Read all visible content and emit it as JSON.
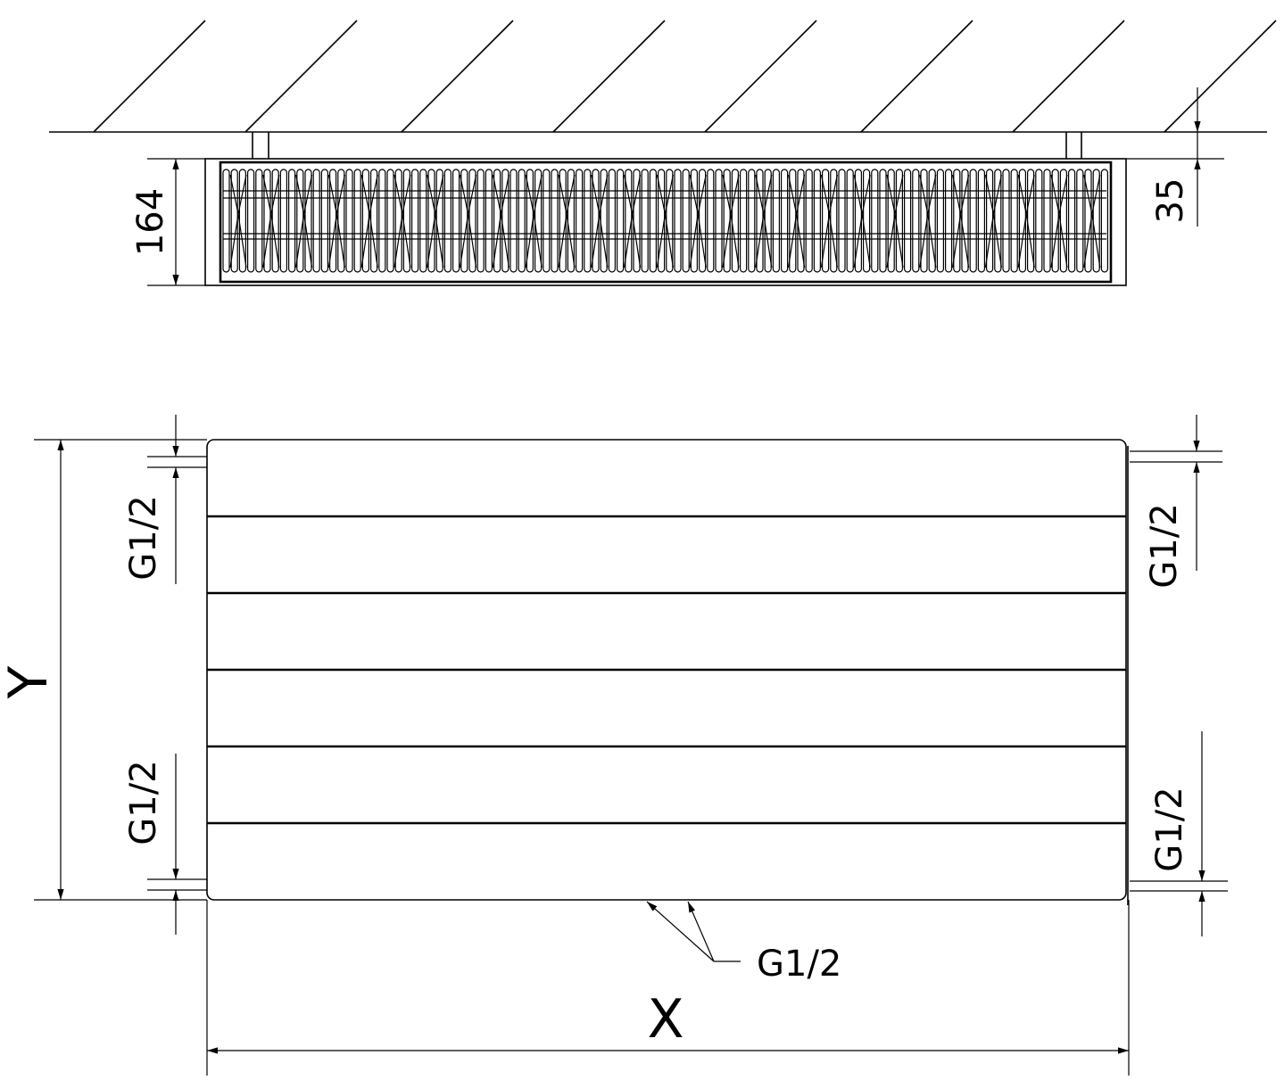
{
  "top_view": {
    "height_dim": "164",
    "wall_gap_dim": "35"
  },
  "front_view": {
    "height_dim": "Y",
    "width_dim": "X",
    "left_top_connection": "G1/2",
    "left_bottom_connection": "G1/2",
    "right_top_connection": "G1/2",
    "right_bottom_connection": "G1/2",
    "bottom_connection": "G1/2",
    "panel_stripes": 6
  }
}
